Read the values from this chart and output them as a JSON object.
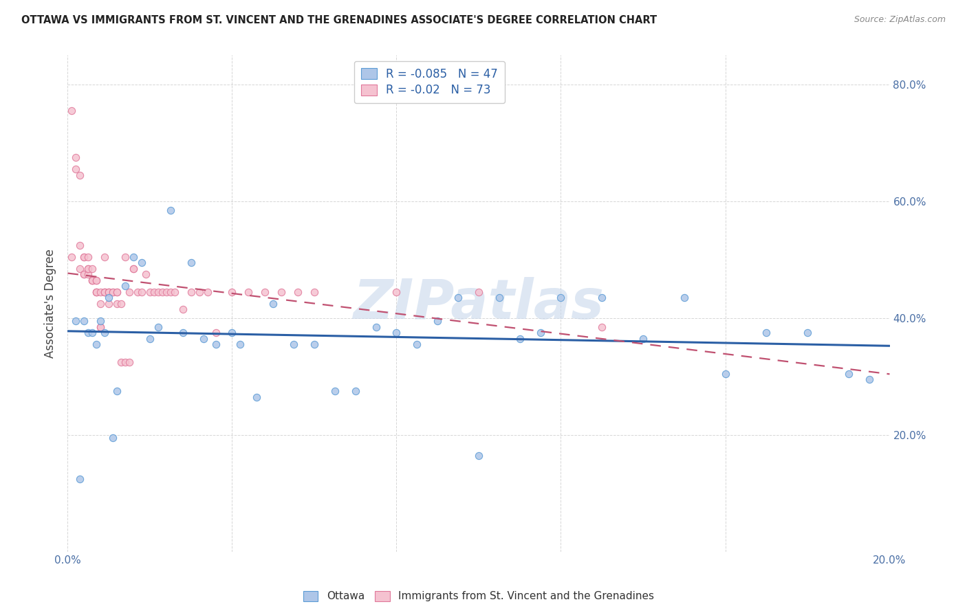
{
  "title": "OTTAWA VS IMMIGRANTS FROM ST. VINCENT AND THE GRENADINES ASSOCIATE'S DEGREE CORRELATION CHART",
  "source": "Source: ZipAtlas.com",
  "ylabel": "Associate's Degree",
  "xlim": [
    0.0,
    0.2
  ],
  "ylim": [
    0.0,
    0.85
  ],
  "xtick_positions": [
    0.0,
    0.04,
    0.08,
    0.12,
    0.16,
    0.2
  ],
  "xtick_labels": [
    "0.0%",
    "",
    "",
    "",
    "",
    "20.0%"
  ],
  "ytick_positions": [
    0.0,
    0.2,
    0.4,
    0.6,
    0.8
  ],
  "ytick_labels": [
    "",
    "20.0%",
    "40.0%",
    "60.0%",
    "80.0%"
  ],
  "R_ottawa": -0.085,
  "N_ottawa": 47,
  "R_immigrants": -0.02,
  "N_immigrants": 73,
  "ottawa_color": "#aec6e8",
  "ottawa_edge_color": "#5b9bd5",
  "ottawa_line_color": "#2b5fa5",
  "immigrants_color": "#f5c2d0",
  "immigrants_edge_color": "#e0789a",
  "immigrants_line_color": "#c05070",
  "legend_color": "#2b5fa5",
  "watermark": "ZIPatlas",
  "watermark_color": "#c8d8ec",
  "grid_color": "#cccccc",
  "bg_color": "#ffffff",
  "ottawa_x": [
    0.002,
    0.003,
    0.004,
    0.005,
    0.006,
    0.007,
    0.008,
    0.009,
    0.01,
    0.011,
    0.012,
    0.014,
    0.016,
    0.018,
    0.02,
    0.022,
    0.025,
    0.028,
    0.03,
    0.033,
    0.036,
    0.04,
    0.042,
    0.046,
    0.05,
    0.055,
    0.06,
    0.065,
    0.07,
    0.075,
    0.08,
    0.085,
    0.09,
    0.095,
    0.1,
    0.105,
    0.11,
    0.115,
    0.12,
    0.13,
    0.14,
    0.15,
    0.16,
    0.17,
    0.18,
    0.19,
    0.195
  ],
  "ottawa_y": [
    0.395,
    0.125,
    0.395,
    0.375,
    0.375,
    0.355,
    0.395,
    0.375,
    0.435,
    0.195,
    0.275,
    0.455,
    0.505,
    0.495,
    0.365,
    0.385,
    0.585,
    0.375,
    0.495,
    0.365,
    0.355,
    0.375,
    0.355,
    0.265,
    0.425,
    0.355,
    0.355,
    0.275,
    0.275,
    0.385,
    0.375,
    0.355,
    0.395,
    0.435,
    0.165,
    0.435,
    0.365,
    0.375,
    0.435,
    0.435,
    0.365,
    0.435,
    0.305,
    0.375,
    0.375,
    0.305,
    0.295
  ],
  "immigrants_x": [
    0.001,
    0.001,
    0.002,
    0.002,
    0.003,
    0.003,
    0.003,
    0.004,
    0.004,
    0.004,
    0.004,
    0.005,
    0.005,
    0.005,
    0.005,
    0.006,
    0.006,
    0.006,
    0.006,
    0.007,
    0.007,
    0.007,
    0.007,
    0.007,
    0.008,
    0.008,
    0.008,
    0.008,
    0.009,
    0.009,
    0.009,
    0.009,
    0.01,
    0.01,
    0.01,
    0.01,
    0.011,
    0.011,
    0.012,
    0.012,
    0.012,
    0.013,
    0.013,
    0.014,
    0.014,
    0.015,
    0.015,
    0.016,
    0.016,
    0.017,
    0.018,
    0.019,
    0.02,
    0.021,
    0.022,
    0.023,
    0.024,
    0.025,
    0.026,
    0.028,
    0.03,
    0.032,
    0.034,
    0.036,
    0.04,
    0.044,
    0.048,
    0.052,
    0.056,
    0.06,
    0.08,
    0.1,
    0.13
  ],
  "immigrants_y": [
    0.755,
    0.505,
    0.655,
    0.675,
    0.645,
    0.525,
    0.485,
    0.505,
    0.505,
    0.475,
    0.475,
    0.475,
    0.505,
    0.485,
    0.485,
    0.485,
    0.465,
    0.465,
    0.465,
    0.465,
    0.465,
    0.445,
    0.445,
    0.445,
    0.425,
    0.385,
    0.385,
    0.445,
    0.445,
    0.445,
    0.445,
    0.505,
    0.425,
    0.445,
    0.445,
    0.445,
    0.445,
    0.445,
    0.425,
    0.445,
    0.445,
    0.425,
    0.325,
    0.505,
    0.325,
    0.325,
    0.445,
    0.485,
    0.485,
    0.445,
    0.445,
    0.475,
    0.445,
    0.445,
    0.445,
    0.445,
    0.445,
    0.445,
    0.445,
    0.415,
    0.445,
    0.445,
    0.445,
    0.375,
    0.445,
    0.445,
    0.445,
    0.445,
    0.445,
    0.445,
    0.445,
    0.445,
    0.385
  ]
}
